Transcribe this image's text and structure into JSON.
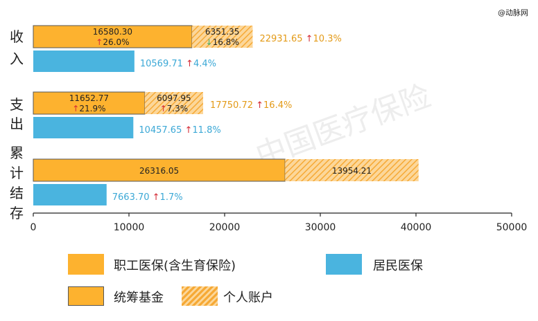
{
  "source_mark": "@动脉网",
  "watermark": "中国医疗保险",
  "colors": {
    "employee": "#FDB22F",
    "resident": "#4AB4DF",
    "hatch": "#F6B14A",
    "up_arrow": "#D42A35",
    "down_arrow": "#3DAE6A",
    "employee_text": "#E39A17",
    "resident_text": "#3BA8D6"
  },
  "legend": {
    "employee": "职工医保(含生育保险)",
    "resident": "居民医保",
    "pooled_fund": "统筹基金",
    "personal_account": "个人账户"
  },
  "chart_data": {
    "type": "bar",
    "orientation": "horizontal",
    "stacked": true,
    "xlim": [
      0,
      50000
    ],
    "x_ticks": [
      "0",
      "10000",
      "20000",
      "30000",
      "40000",
      "50000"
    ],
    "categories": [
      {
        "label": "收入",
        "employee": {
          "pooled": 16580.3,
          "pooled_label": "16580.30",
          "pooled_growth": "26.0%",
          "pooled_dir": "up",
          "personal": 6351.35,
          "personal_label": "6351.35",
          "personal_growth": "16.8%",
          "personal_dir": "down",
          "total_label": "22931.65",
          "total_growth": "10.3%"
        },
        "resident": {
          "value": 10569.71,
          "label": "10569.71",
          "growth": "4.4%"
        }
      },
      {
        "label": "支出",
        "employee": {
          "pooled": 11652.77,
          "pooled_label": "11652.77",
          "pooled_growth": "21.9%",
          "pooled_dir": "up",
          "personal": 6097.95,
          "personal_label": "6097.95",
          "personal_growth": "7.3%",
          "personal_dir": "up",
          "total_label": "17750.72",
          "total_growth": "16.4%"
        },
        "resident": {
          "value": 10457.65,
          "label": "10457.65",
          "growth": "11.8%"
        }
      },
      {
        "label": "累计结存",
        "employee": {
          "pooled": 26316.05,
          "pooled_label": "26316.05",
          "pooled_growth": "",
          "pooled_dir": "",
          "personal": 13954.21,
          "personal_label": "13954.21",
          "personal_growth": "",
          "personal_dir": "",
          "total_label": "",
          "total_growth": ""
        },
        "resident": {
          "value": 7663.7,
          "label": "7663.70",
          "growth": "1.7%"
        }
      }
    ],
    "series": [
      {
        "name": "统筹基金"
      },
      {
        "name": "个人账户"
      },
      {
        "name": "居民医保"
      }
    ],
    "grid": false,
    "legend_position": "bottom"
  }
}
